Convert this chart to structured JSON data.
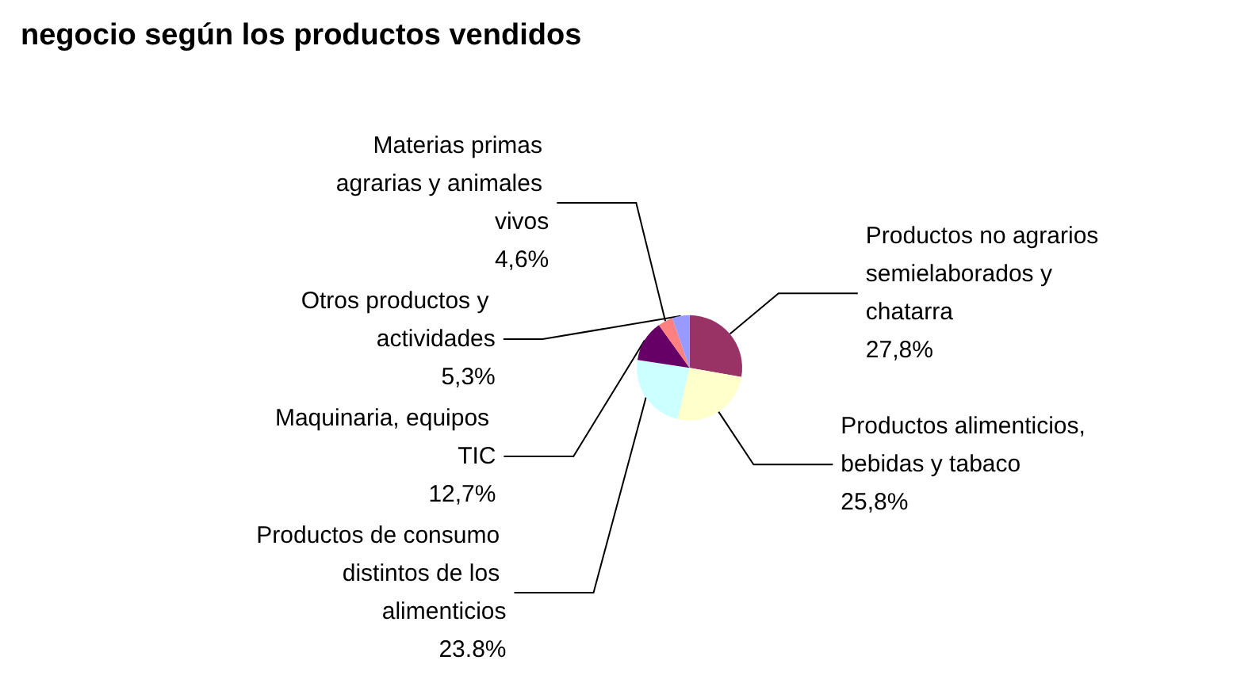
{
  "chart_data": {
    "type": "pie",
    "title": "negocio según los productos vendidos",
    "categories": [
      "Productos no agrarios semielaborados y chatarra",
      "Productos alimenticios, bebidas y tabaco",
      "Productos de consumo distintos de los alimenticios",
      "Maquinaria, equipos TIC",
      "Materias primas agrarias y animales vivos",
      "Otros productos y actividades"
    ],
    "values": [
      27.8,
      25.8,
      23.8,
      12.7,
      4.6,
      5.3
    ],
    "value_labels": [
      "27,8%",
      "25,8%",
      "23.8%",
      "12,7%",
      "4,6%",
      "5,3%"
    ],
    "colors": [
      "#993366",
      "#ffffcc",
      "#ccffff",
      "#660066",
      "#ff8080",
      "#9999ff"
    ],
    "legend": false
  }
}
